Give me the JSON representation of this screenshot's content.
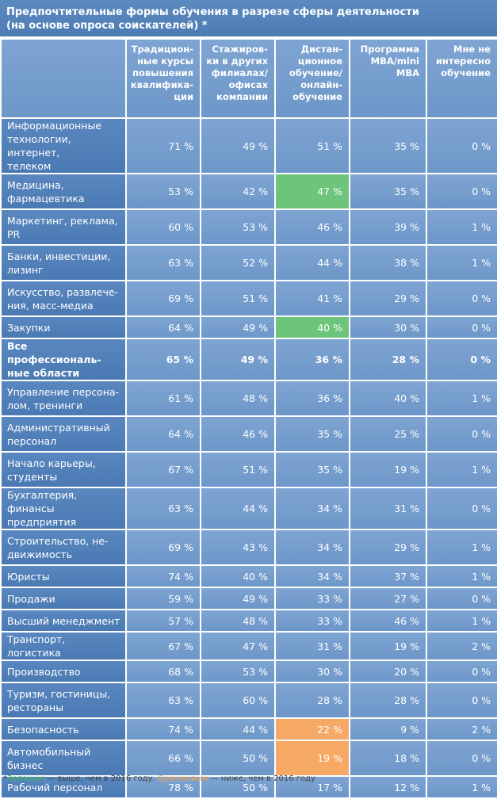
{
  "title": {
    "line1": "Предпочтительные формы обучения в разрезе сферы деятельности",
    "line2": "(на основе опроса соискателей) *"
  },
  "columns": [
    {
      "lines": [
        "Традицион-",
        "ные курсы",
        "повышения",
        "квалифика-",
        "ции"
      ]
    },
    {
      "lines": [
        "Стажиров-",
        "ки в других",
        "филиалах/",
        "офисах",
        "компании"
      ]
    },
    {
      "lines": [
        "Дистан-",
        "ционное",
        "обучение/",
        "онлайн-",
        "обучение"
      ]
    },
    {
      "lines": [
        "Программа",
        "MBA/mini",
        "MBA"
      ]
    },
    {
      "lines": [
        "Мне не",
        "интересно",
        "обучение"
      ]
    }
  ],
  "rows": [
    {
      "label": [
        "Информационные",
        "технологии, интернет,",
        "телеком"
      ],
      "values": [
        "71 %",
        "49 %",
        "51 %",
        "35 %",
        "0 %"
      ],
      "highlight": {}
    },
    {
      "label": [
        "Медицина,",
        "фармацевтика"
      ],
      "values": [
        "53 %",
        "42 %",
        "47 %",
        "35 %",
        "0 %"
      ],
      "highlight": {
        "2": "green"
      }
    },
    {
      "label": [
        "Маркетинг, реклама,",
        "PR"
      ],
      "values": [
        "60 %",
        "53 %",
        "46 %",
        "39 %",
        "1 %"
      ],
      "highlight": {}
    },
    {
      "label": [
        "Банки, инвестиции,",
        "лизинг"
      ],
      "values": [
        "63 %",
        "52 %",
        "44 %",
        "38 %",
        "1 %"
      ],
      "highlight": {}
    },
    {
      "label": [
        "Искусство, развлече-",
        "ния, масс-медиа"
      ],
      "values": [
        "69 %",
        "51 %",
        "41 %",
        "29 %",
        "0 %"
      ],
      "highlight": {}
    },
    {
      "label": [
        "Закупки"
      ],
      "values": [
        "64 %",
        "49 %",
        "40 %",
        "30 %",
        "0 %"
      ],
      "highlight": {
        "2": "green"
      }
    },
    {
      "label": [
        "Все профессиональ-",
        "ные области"
      ],
      "values": [
        "65 %",
        "49 %",
        "36 %",
        "28 %",
        "0 %"
      ],
      "highlight": {},
      "bold": true
    },
    {
      "label": [
        "Управление персона-",
        "лом, тренинги"
      ],
      "values": [
        "61 %",
        "48 %",
        "36 %",
        "40 %",
        "1 %"
      ],
      "highlight": {}
    },
    {
      "label": [
        "Административный",
        "персонал"
      ],
      "values": [
        "64 %",
        "46 %",
        "35 %",
        "25 %",
        "0 %"
      ],
      "highlight": {}
    },
    {
      "label": [
        "Начало карьеры,",
        "студенты"
      ],
      "values": [
        "67 %",
        "51 %",
        "35 %",
        "19 %",
        "1 %"
      ],
      "highlight": {}
    },
    {
      "label": [
        "Бухгалтерия, финансы",
        "предприятия"
      ],
      "values": [
        "63 %",
        "44 %",
        "34 %",
        "31 %",
        "0 %"
      ],
      "highlight": {}
    },
    {
      "label": [
        "Строительство, не-",
        "движимость"
      ],
      "values": [
        "69 %",
        "43 %",
        "34 %",
        "29 %",
        "1 %"
      ],
      "highlight": {}
    },
    {
      "label": [
        "Юристы"
      ],
      "values": [
        "74 %",
        "40 %",
        "34 %",
        "37 %",
        "1 %"
      ],
      "highlight": {}
    },
    {
      "label": [
        "Продажи"
      ],
      "values": [
        "59 %",
        "49 %",
        "33 %",
        "27 %",
        "0 %"
      ],
      "highlight": {}
    },
    {
      "label": [
        "Высший менеджмент"
      ],
      "values": [
        "57 %",
        "48 %",
        "33 %",
        "46 %",
        "1 %"
      ],
      "highlight": {}
    },
    {
      "label": [
        "Транспорт, логистика"
      ],
      "values": [
        "67 %",
        "47 %",
        "31 %",
        "19 %",
        "2 %"
      ],
      "highlight": {}
    },
    {
      "label": [
        "Производство"
      ],
      "values": [
        "68 %",
        "53 %",
        "30 %",
        "20 %",
        "0 %"
      ],
      "highlight": {}
    },
    {
      "label": [
        "Туризм, гостиницы,",
        "рестораны"
      ],
      "values": [
        "63 %",
        "60 %",
        "28 %",
        "28 %",
        "0 %"
      ],
      "highlight": {}
    },
    {
      "label": [
        "Безопасность"
      ],
      "values": [
        "74 %",
        "44 %",
        "22 %",
        "9 %",
        "2 %"
      ],
      "highlight": {
        "2": "orange"
      }
    },
    {
      "label": [
        "Автомобильный",
        "бизнес"
      ],
      "values": [
        "66 %",
        "50 %",
        "19 %",
        "18 %",
        "0 %"
      ],
      "highlight": {
        "2": "orange"
      }
    },
    {
      "label": [
        "Рабочий персонал"
      ],
      "values": [
        "78 %",
        "50 %",
        "17 %",
        "12 %",
        "1 %"
      ],
      "highlight": {}
    }
  ],
  "colors": {
    "green": "#6cc57a",
    "orange": "#f6a964"
  },
  "footer": {
    "star": "*",
    "green_word": "Зеленым",
    "green_text": " — выше, чем в 2016 году. ",
    "orange_word": "Оранжевым",
    "orange_text": " — ниже, чем в 2016 году"
  }
}
